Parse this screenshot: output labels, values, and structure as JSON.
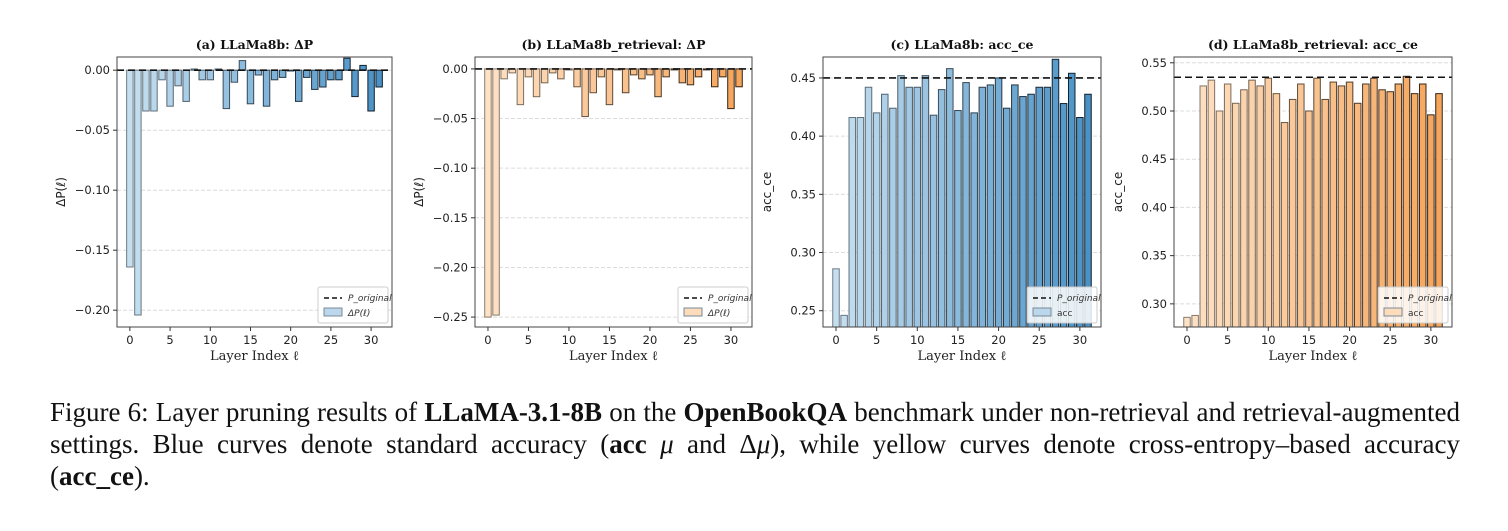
{
  "chart_data": [
    {
      "type": "bar",
      "panel_id": "a",
      "title": "(a) LLaMa8b: ΔP",
      "xlabel": "Layer Index ℓ",
      "ylabel": "ΔP(ℓ)",
      "x": [
        0,
        1,
        2,
        3,
        4,
        5,
        6,
        7,
        8,
        9,
        10,
        11,
        12,
        13,
        14,
        15,
        16,
        17,
        18,
        19,
        20,
        21,
        22,
        23,
        24,
        25,
        26,
        27,
        28,
        29,
        30,
        31
      ],
      "values": [
        -0.164,
        -0.204,
        -0.034,
        -0.034,
        -0.008,
        -0.03,
        -0.013,
        -0.026,
        0.001,
        -0.008,
        -0.008,
        0.001,
        -0.032,
        -0.01,
        0.008,
        -0.028,
        -0.004,
        -0.03,
        -0.008,
        -0.006,
        0.0,
        -0.026,
        -0.006,
        -0.016,
        -0.014,
        -0.008,
        -0.008,
        0.01,
        -0.022,
        0.004,
        -0.034,
        -0.014
      ],
      "reference_line": {
        "label": "P_original",
        "value": 0.0
      },
      "series_label": "ΔP(ℓ)",
      "ylim": [
        -0.214,
        0.011
      ],
      "yticks": [
        0.0,
        -0.05,
        -0.1,
        -0.15,
        -0.2
      ],
      "ytick_labels": [
        "0.00",
        "−0.05",
        "−0.10",
        "−0.15",
        "−0.20"
      ],
      "xticks": [
        0,
        5,
        10,
        15,
        20,
        25,
        30
      ],
      "xlim": [
        -1.6,
        32.6
      ],
      "legend_position": "lower-right",
      "grid": "horizontal",
      "color_start": "#c6dff0",
      "color_end": "#4a92c6"
    },
    {
      "type": "bar",
      "panel_id": "b",
      "title": "(b) LLaMa8b_retrieval: ΔP",
      "xlabel": "Layer Index ℓ",
      "ylabel": "ΔP(ℓ)",
      "x": [
        0,
        1,
        2,
        3,
        4,
        5,
        6,
        7,
        8,
        9,
        10,
        11,
        12,
        13,
        14,
        15,
        16,
        17,
        18,
        19,
        20,
        21,
        22,
        23,
        24,
        25,
        26,
        27,
        28,
        29,
        30,
        31
      ],
      "values": [
        -0.25,
        -0.248,
        -0.01,
        -0.004,
        -0.036,
        -0.008,
        -0.028,
        -0.014,
        -0.004,
        -0.01,
        -0.001,
        -0.018,
        -0.048,
        -0.024,
        -0.008,
        -0.036,
        -0.001,
        -0.024,
        -0.006,
        -0.01,
        -0.006,
        -0.028,
        -0.008,
        -0.001,
        -0.014,
        -0.016,
        -0.008,
        -0.001,
        -0.018,
        -0.008,
        -0.04,
        -0.018
      ],
      "reference_line": {
        "label": "P_original",
        "value": 0.0
      },
      "series_label": "ΔP(ℓ)",
      "ylim": [
        -0.26,
        0.012
      ],
      "yticks": [
        0.0,
        -0.05,
        -0.1,
        -0.15,
        -0.2,
        -0.25
      ],
      "ytick_labels": [
        "0.00",
        "−0.05",
        "−0.10",
        "−0.15",
        "−0.20",
        "−0.25"
      ],
      "xticks": [
        0,
        5,
        10,
        15,
        20,
        25,
        30
      ],
      "xlim": [
        -1.6,
        32.6
      ],
      "legend_position": "lower-right",
      "grid": "horizontal",
      "color_start": "#fde2c6",
      "color_end": "#f5a55c"
    },
    {
      "type": "bar",
      "panel_id": "c",
      "title": "(c) LLaMa8b: acc_ce",
      "xlabel": "Layer Index ℓ",
      "ylabel": "acc_ce",
      "x": [
        0,
        1,
        2,
        3,
        4,
        5,
        6,
        7,
        8,
        9,
        10,
        11,
        12,
        13,
        14,
        15,
        16,
        17,
        18,
        19,
        20,
        21,
        22,
        23,
        24,
        25,
        26,
        27,
        28,
        29,
        30,
        31
      ],
      "values": [
        0.286,
        0.246,
        0.416,
        0.416,
        0.442,
        0.42,
        0.436,
        0.424,
        0.452,
        0.442,
        0.442,
        0.452,
        0.418,
        0.44,
        0.458,
        0.422,
        0.446,
        0.42,
        0.442,
        0.444,
        0.45,
        0.424,
        0.444,
        0.434,
        0.436,
        0.442,
        0.442,
        0.466,
        0.428,
        0.454,
        0.416,
        0.436
      ],
      "reference_line": {
        "label": "P_original",
        "value": 0.45
      },
      "series_label": "acc",
      "ylim": [
        0.236,
        0.468
      ],
      "yticks": [
        0.25,
        0.3,
        0.35,
        0.4,
        0.45
      ],
      "ytick_labels": [
        "0.25",
        "0.30",
        "0.35",
        "0.40",
        "0.45"
      ],
      "xticks": [
        0,
        5,
        10,
        15,
        20,
        25,
        30
      ],
      "xlim": [
        -1.6,
        32.6
      ],
      "legend_position": "lower-right",
      "grid": "horizontal",
      "color_start": "#c6dff0",
      "color_end": "#4a92c6"
    },
    {
      "type": "bar",
      "panel_id": "d",
      "title": "(d) LLaMa8b_retrieval: acc_ce",
      "xlabel": "Layer Index ℓ",
      "ylabel": "acc_ce",
      "x": [
        0,
        1,
        2,
        3,
        4,
        5,
        6,
        7,
        8,
        9,
        10,
        11,
        12,
        13,
        14,
        15,
        16,
        17,
        18,
        19,
        20,
        21,
        22,
        23,
        24,
        25,
        26,
        27,
        28,
        29,
        30,
        31
      ],
      "values": [
        0.286,
        0.288,
        0.526,
        0.532,
        0.5,
        0.528,
        0.508,
        0.522,
        0.532,
        0.526,
        0.534,
        0.518,
        0.488,
        0.512,
        0.528,
        0.5,
        0.534,
        0.512,
        0.53,
        0.526,
        0.53,
        0.508,
        0.528,
        0.534,
        0.522,
        0.52,
        0.528,
        0.536,
        0.518,
        0.528,
        0.496,
        0.518
      ],
      "reference_line": {
        "label": "P_original",
        "value": 0.535
      },
      "series_label": "acc",
      "ylim": [
        0.276,
        0.556
      ],
      "yticks": [
        0.3,
        0.35,
        0.4,
        0.45,
        0.5,
        0.55
      ],
      "ytick_labels": [
        "0.30",
        "0.35",
        "0.40",
        "0.45",
        "0.50",
        "0.55"
      ],
      "xticks": [
        0,
        5,
        10,
        15,
        20,
        25,
        30
      ],
      "xlim": [
        -1.6,
        32.6
      ],
      "legend_position": "lower-right",
      "grid": "horizontal",
      "color_start": "#fde2c6",
      "color_end": "#f5a55c"
    }
  ],
  "caption": {
    "prefix": "Figure 6: Layer pruning results of ",
    "model": "LLaMA-3.1-8B",
    "mid1": " on the ",
    "benchmark": "OpenBookQA",
    "mid2": " benchmark under non-retrieval and retrieval-augmented settings. Blue curves denote standard accuracy (",
    "acc": "acc",
    "mu": " μ",
    "and": " and Δ",
    "mu2": "μ",
    "mid3": "), while yellow curves denote cross-entropy–based accuracy (",
    "acc_ce": "acc_ce",
    "suffix": ")."
  }
}
